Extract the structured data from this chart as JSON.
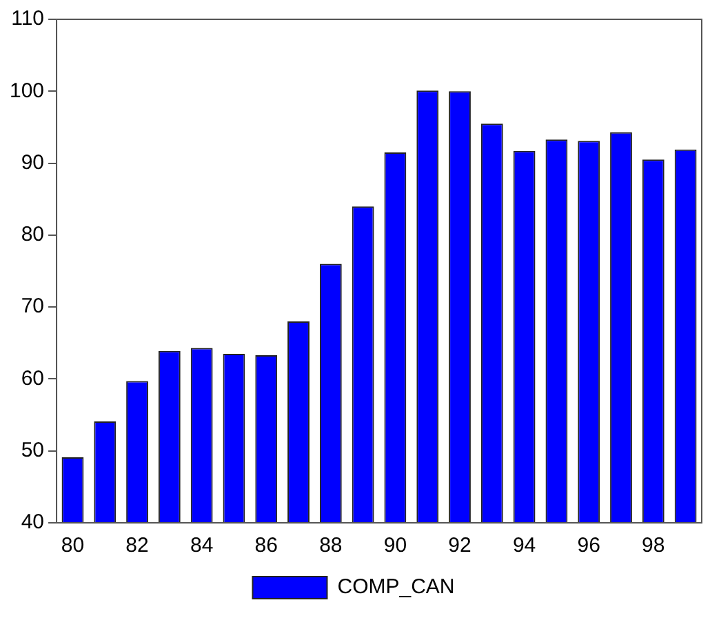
{
  "chart_data": {
    "type": "bar",
    "categories": [
      "80",
      null,
      "82",
      null,
      "84",
      null,
      "86",
      null,
      "88",
      null,
      "90",
      null,
      "92",
      null,
      "94",
      null,
      "96",
      null,
      "98",
      null
    ],
    "series": [
      {
        "name": "COMP_CAN",
        "color": "#0000ff",
        "values": [
          49.1,
          54.1,
          59.7,
          63.9,
          64.3,
          63.5,
          63.3,
          68,
          76,
          84,
          91.5,
          100.1,
          100,
          95.5,
          91.7,
          93.3,
          93.1,
          94.3,
          90.5,
          91.9
        ]
      }
    ],
    "ylim": [
      40,
      110
    ],
    "yticks": [
      40,
      50,
      60,
      70,
      80,
      90,
      100,
      110
    ],
    "grid": false,
    "legend": "bottom"
  }
}
